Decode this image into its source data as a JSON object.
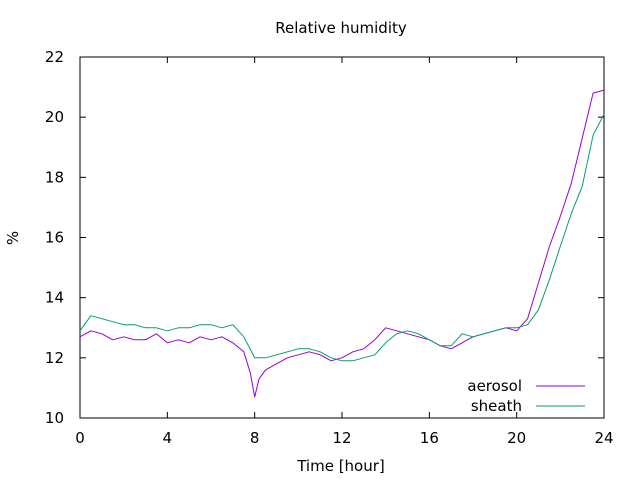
{
  "chart_data": {
    "type": "line",
    "title": "Relative humidity",
    "xlabel": "Time [hour]",
    "ylabel": "%",
    "xlim": [
      0,
      24
    ],
    "ylim": [
      10,
      22
    ],
    "xticks": [
      0,
      4,
      8,
      12,
      16,
      20,
      24
    ],
    "yticks": [
      10,
      12,
      14,
      16,
      18,
      20,
      22
    ],
    "grid": false,
    "legend_position": "bottom-right",
    "series": [
      {
        "name": "aerosol",
        "color": "#9400d3",
        "x": [
          0,
          0.5,
          1,
          1.5,
          2,
          2.5,
          3,
          3.5,
          4,
          4.5,
          5,
          5.5,
          6,
          6.5,
          7,
          7.5,
          7.8,
          8,
          8.2,
          8.5,
          9,
          9.5,
          10,
          10.5,
          11,
          11.5,
          12,
          12.5,
          13,
          13.5,
          14,
          14.5,
          15,
          15.5,
          16,
          16.5,
          17,
          17.5,
          18,
          18.5,
          19,
          19.5,
          20,
          20.5,
          21,
          21.5,
          22,
          22.5,
          23,
          23.5,
          24
        ],
        "y": [
          12.7,
          12.9,
          12.8,
          12.6,
          12.7,
          12.6,
          12.6,
          12.8,
          12.5,
          12.6,
          12.5,
          12.7,
          12.6,
          12.7,
          12.5,
          12.2,
          11.5,
          10.7,
          11.3,
          11.6,
          11.8,
          12.0,
          12.1,
          12.2,
          12.1,
          11.9,
          12.0,
          12.2,
          12.3,
          12.6,
          13.0,
          12.9,
          12.8,
          12.7,
          12.6,
          12.4,
          12.3,
          12.5,
          12.7,
          12.8,
          12.9,
          13.0,
          12.9,
          13.3,
          14.5,
          15.7,
          16.7,
          17.8,
          19.3,
          20.8,
          20.9
        ]
      },
      {
        "name": "sheath",
        "color": "#009e73",
        "x": [
          0,
          0.5,
          1,
          1.5,
          2,
          2.5,
          3,
          3.5,
          4,
          4.5,
          5,
          5.5,
          6,
          6.5,
          7,
          7.5,
          8,
          8.5,
          9,
          9.5,
          10,
          10.5,
          11,
          11.5,
          12,
          12.5,
          13,
          13.5,
          14,
          14.5,
          15,
          15.5,
          16,
          16.5,
          17,
          17.5,
          18,
          18.5,
          19,
          19.5,
          20,
          20.5,
          21,
          21.5,
          22,
          22.5,
          23,
          23.5,
          24
        ],
        "y": [
          12.9,
          13.4,
          13.3,
          13.2,
          13.1,
          13.1,
          13.0,
          13.0,
          12.9,
          13.0,
          13.0,
          13.1,
          13.1,
          13.0,
          13.1,
          12.7,
          12.0,
          12.0,
          12.1,
          12.2,
          12.3,
          12.3,
          12.2,
          12.0,
          11.9,
          11.9,
          12.0,
          12.1,
          12.5,
          12.8,
          12.9,
          12.8,
          12.6,
          12.4,
          12.4,
          12.8,
          12.7,
          12.8,
          12.9,
          13.0,
          13.0,
          13.1,
          13.6,
          14.6,
          15.7,
          16.8,
          17.7,
          19.4,
          20.1
        ]
      }
    ]
  }
}
